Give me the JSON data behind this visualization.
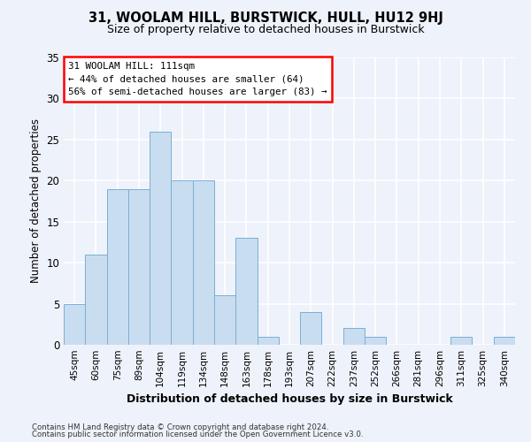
{
  "title": "31, WOOLAM HILL, BURSTWICK, HULL, HU12 9HJ",
  "subtitle": "Size of property relative to detached houses in Burstwick",
  "xlabel": "Distribution of detached houses by size in Burstwick",
  "ylabel": "Number of detached properties",
  "bar_labels": [
    "45sqm",
    "60sqm",
    "75sqm",
    "89sqm",
    "104sqm",
    "119sqm",
    "134sqm",
    "148sqm",
    "163sqm",
    "178sqm",
    "193sqm",
    "207sqm",
    "222sqm",
    "237sqm",
    "252sqm",
    "266sqm",
    "281sqm",
    "296sqm",
    "311sqm",
    "325sqm",
    "340sqm"
  ],
  "bar_values": [
    5,
    11,
    19,
    19,
    26,
    20,
    20,
    6,
    13,
    1,
    0,
    4,
    0,
    2,
    1,
    0,
    0,
    0,
    1,
    0,
    1
  ],
  "bar_color": "#c9ddf0",
  "bar_edge_color": "#7bafd4",
  "annotation_box": {
    "line1": "31 WOOLAM HILL: 111sqm",
    "line2": "← 44% of detached houses are smaller (64)",
    "line3": "56% of semi-detached houses are larger (83) →"
  },
  "ylim": [
    0,
    35
  ],
  "yticks": [
    0,
    5,
    10,
    15,
    20,
    25,
    30,
    35
  ],
  "background_color": "#eef2fa",
  "grid_color": "#ffffff",
  "footer_line1": "Contains HM Land Registry data © Crown copyright and database right 2024.",
  "footer_line2": "Contains public sector information licensed under the Open Government Licence v3.0."
}
